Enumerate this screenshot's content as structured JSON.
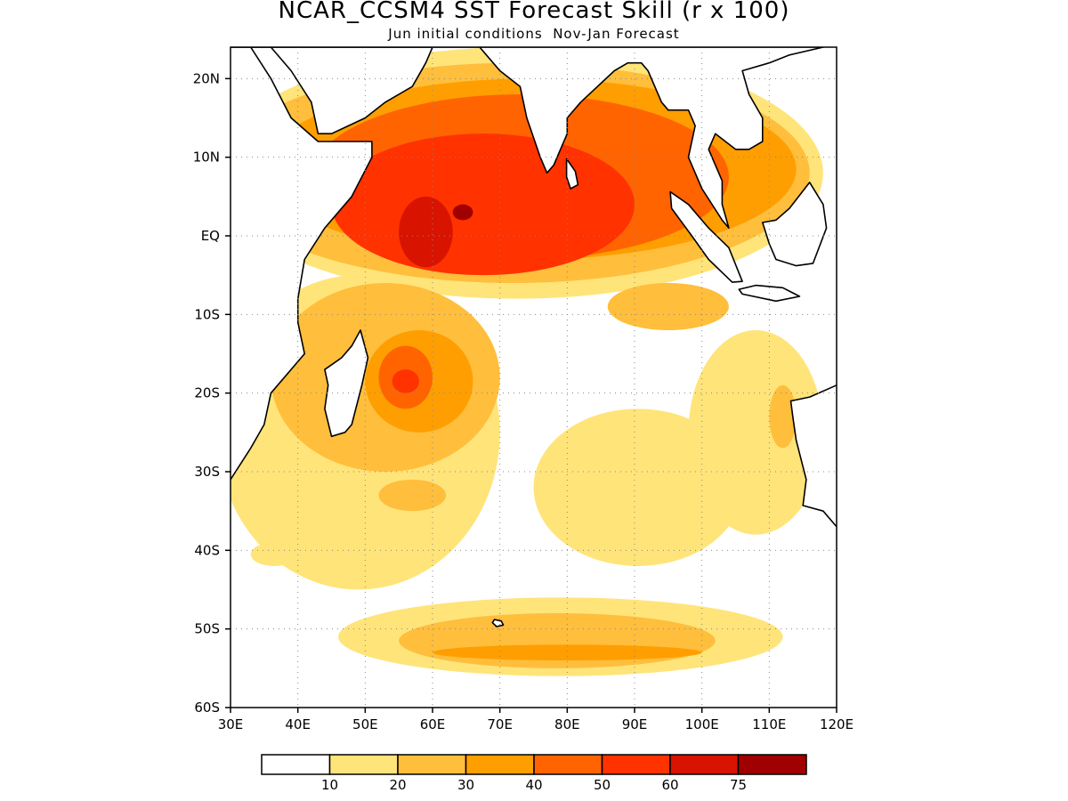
{
  "title": "NCAR_CCSM4 SST Forecast Skill (r x 100)",
  "subtitle": "Jun initial conditions  Nov-Jan Forecast",
  "axes": {
    "x_ticks": [
      "30E",
      "40E",
      "50E",
      "60E",
      "70E",
      "80E",
      "90E",
      "100E",
      "110E",
      "120E"
    ],
    "y_ticks": [
      "20N",
      "10N",
      "EQ",
      "10S",
      "20S",
      "30S",
      "40S",
      "50S",
      "60S"
    ]
  },
  "colorbar": {
    "labels": [
      "10",
      "20",
      "30",
      "40",
      "50",
      "60",
      "75"
    ],
    "colors": [
      "#ffffff",
      "#ffe47a",
      "#ffbe3c",
      "#ff9e00",
      "#ff6400",
      "#ff3200",
      "#d81400",
      "#a00000"
    ]
  },
  "chart_data": {
    "type": "heatmap",
    "title": "NCAR_CCSM4 SST Forecast Skill (r x 100)",
    "subtitle": "Jun initial conditions  Nov-Jan Forecast",
    "x_range": [
      30,
      120
    ],
    "y_range": [
      -60,
      24
    ],
    "x_ticks": [
      "30E",
      "40E",
      "50E",
      "60E",
      "70E",
      "80E",
      "90E",
      "100E",
      "110E",
      "120E"
    ],
    "y_ticks": [
      "20N",
      "10N",
      "EQ",
      "10S",
      "20S",
      "30S",
      "40S",
      "50S",
      "60S"
    ],
    "levels": [
      10,
      20,
      30,
      40,
      50,
      60,
      75
    ],
    "regions": [
      {
        "level": 10,
        "lon": [
          27,
          118
        ],
        "lat": [
          -8,
          24
        ]
      },
      {
        "level": 10,
        "lon": [
          28,
          70
        ],
        "lat": [
          -45,
          -5
        ]
      },
      {
        "level": 10,
        "lon": [
          40,
          64
        ],
        "lat": [
          -40,
          -26
        ]
      },
      {
        "level": 10,
        "lon": [
          98,
          118
        ],
        "lat": [
          -38,
          -12
        ]
      },
      {
        "level": 10,
        "lon": [
          75,
          106
        ],
        "lat": [
          -42,
          -22
        ]
      },
      {
        "level": 10,
        "lon": [
          46,
          112
        ],
        "lat": [
          -56,
          -46
        ]
      },
      {
        "level": 10,
        "lon": [
          33,
          40
        ],
        "lat": [
          -42,
          -39
        ]
      },
      {
        "level": 10,
        "lon": [
          38,
          47
        ],
        "lat": [
          -34,
          -30
        ]
      },
      {
        "level": 20,
        "lon": [
          28,
          116
        ],
        "lat": [
          -6,
          22
        ]
      },
      {
        "level": 20,
        "lon": [
          36,
          70
        ],
        "lat": [
          -30,
          -6
        ]
      },
      {
        "level": 20,
        "lon": [
          52,
          62
        ],
        "lat": [
          -35,
          -31
        ]
      },
      {
        "level": 20,
        "lon": [
          86,
          104
        ],
        "lat": [
          -12,
          -6
        ]
      },
      {
        "level": 20,
        "lon": [
          110,
          114
        ],
        "lat": [
          -27,
          -19
        ]
      },
      {
        "level": 20,
        "lon": [
          55,
          102
        ],
        "lat": [
          -55,
          -48
        ]
      },
      {
        "level": 30,
        "lon": [
          35,
          114
        ],
        "lat": [
          -3,
          20
        ]
      },
      {
        "level": 30,
        "lon": [
          50,
          66
        ],
        "lat": [
          -25,
          -12
        ]
      },
      {
        "level": 30,
        "lon": [
          60,
          100
        ],
        "lat": [
          -54,
          -52
        ]
      },
      {
        "level": 40,
        "lon": [
          42,
          104
        ],
        "lat": [
          -3,
          18
        ]
      },
      {
        "level": 40,
        "lon": [
          52,
          60
        ],
        "lat": [
          -22,
          -14
        ]
      },
      {
        "level": 50,
        "lon": [
          45,
          90
        ],
        "lat": [
          -5,
          13
        ]
      },
      {
        "level": 50,
        "lon": [
          54,
          58
        ],
        "lat": [
          -20,
          -17
        ]
      },
      {
        "level": 60,
        "lon": [
          55,
          63
        ],
        "lat": [
          -4,
          5
        ]
      },
      {
        "level": 75,
        "lon": [
          63,
          66
        ],
        "lat": [
          2,
          4
        ]
      }
    ]
  }
}
